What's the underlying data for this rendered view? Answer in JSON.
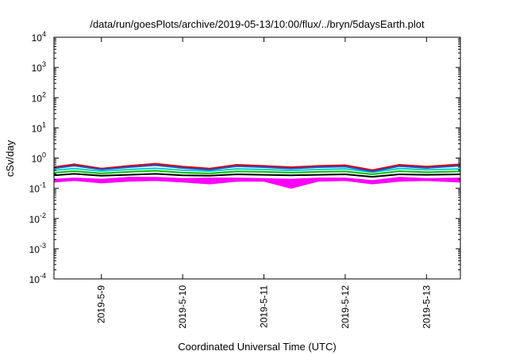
{
  "chart_data": {
    "type": "line",
    "title": "/data/run/goesPlots/archive/2019-05-13/10:00/flux/../bryn/5daysEarth.plot",
    "xlabel": "Coordinated Universal Time (UTC)",
    "ylabel": "cSv/day",
    "y_scale": "log",
    "ylim": [
      0.0001,
      10000
    ],
    "y_ticks": [
      {
        "mantissa": "10",
        "exponent": "-4",
        "value": 0.0001
      },
      {
        "mantissa": "10",
        "exponent": "-3",
        "value": 0.001
      },
      {
        "mantissa": "10",
        "exponent": "-2",
        "value": 0.01
      },
      {
        "mantissa": "10",
        "exponent": "-1",
        "value": 0.1
      },
      {
        "mantissa": "10",
        "exponent": "0",
        "value": 1
      },
      {
        "mantissa": "10",
        "exponent": "1",
        "value": 10
      },
      {
        "mantissa": "10",
        "exponent": "2",
        "value": 100
      },
      {
        "mantissa": "10",
        "exponent": "3",
        "value": 1000
      },
      {
        "mantissa": "10",
        "exponent": "4",
        "value": 10000
      }
    ],
    "xlim": [
      "2019-05-08 10:00",
      "2019-05-13 10:00"
    ],
    "x_ticks": [
      {
        "label": "2019-5-9",
        "date": "2019-05-09 00:00"
      },
      {
        "label": "2019-5-10",
        "date": "2019-05-10 00:00"
      },
      {
        "label": "2019-5-11",
        "date": "2019-05-11 00:00"
      },
      {
        "label": "2019-5-12",
        "date": "2019-05-12 00:00"
      },
      {
        "label": "2019-5-13",
        "date": "2019-05-13 00:00"
      }
    ],
    "grid": false,
    "legend": "none",
    "series": [
      {
        "color": "#ff00ff",
        "style": "filled band",
        "x": [
          "2019-05-08 10:00",
          "2019-05-08 16:00",
          "2019-05-09 00:00",
          "2019-05-09 08:00",
          "2019-05-09 16:00",
          "2019-05-10 00:00",
          "2019-05-10 08:00",
          "2019-05-10 16:00",
          "2019-05-11 00:00",
          "2019-05-11 08:00",
          "2019-05-11 16:00",
          "2019-05-12 00:00",
          "2019-05-12 08:00",
          "2019-05-12 16:00",
          "2019-05-13 00:00",
          "2019-05-13 10:00"
        ],
        "lower": [
          0.16,
          0.18,
          0.15,
          0.17,
          0.18,
          0.16,
          0.14,
          0.17,
          0.17,
          0.1,
          0.17,
          0.18,
          0.14,
          0.17,
          0.18,
          0.16
        ],
        "upper": [
          0.2,
          0.22,
          0.2,
          0.23,
          0.23,
          0.21,
          0.22,
          0.22,
          0.21,
          0.2,
          0.22,
          0.22,
          0.18,
          0.23,
          0.21,
          0.22
        ]
      },
      {
        "color": "#000000",
        "style": "line",
        "x": [
          "2019-05-08 10:00",
          "2019-05-08 16:00",
          "2019-05-09 00:00",
          "2019-05-09 08:00",
          "2019-05-09 16:00",
          "2019-05-10 00:00",
          "2019-05-10 08:00",
          "2019-05-10 16:00",
          "2019-05-11 00:00",
          "2019-05-11 08:00",
          "2019-05-11 16:00",
          "2019-05-12 00:00",
          "2019-05-12 08:00",
          "2019-05-12 16:00",
          "2019-05-13 00:00",
          "2019-05-13 10:00"
        ],
        "values": [
          0.27,
          0.3,
          0.26,
          0.28,
          0.3,
          0.27,
          0.26,
          0.29,
          0.28,
          0.27,
          0.28,
          0.29,
          0.24,
          0.29,
          0.28,
          0.29
        ]
      },
      {
        "color": "#00c000",
        "style": "line",
        "x": [
          "2019-05-08 10:00",
          "2019-05-08 16:00",
          "2019-05-09 00:00",
          "2019-05-09 08:00",
          "2019-05-09 16:00",
          "2019-05-10 00:00",
          "2019-05-10 08:00",
          "2019-05-10 16:00",
          "2019-05-11 00:00",
          "2019-05-11 08:00",
          "2019-05-11 16:00",
          "2019-05-12 00:00",
          "2019-05-12 08:00",
          "2019-05-12 16:00",
          "2019-05-13 00:00",
          "2019-05-13 10:00"
        ],
        "values": [
          0.33,
          0.37,
          0.31,
          0.35,
          0.38,
          0.33,
          0.31,
          0.36,
          0.35,
          0.33,
          0.35,
          0.36,
          0.29,
          0.37,
          0.34,
          0.36
        ]
      },
      {
        "color": "#00d0d0",
        "style": "line",
        "x": [
          "2019-05-08 10:00",
          "2019-05-08 16:00",
          "2019-05-09 00:00",
          "2019-05-09 08:00",
          "2019-05-09 16:00",
          "2019-05-10 00:00",
          "2019-05-10 08:00",
          "2019-05-10 16:00",
          "2019-05-11 00:00",
          "2019-05-11 08:00",
          "2019-05-11 16:00",
          "2019-05-12 00:00",
          "2019-05-12 08:00",
          "2019-05-12 16:00",
          "2019-05-13 00:00",
          "2019-05-13 10:00"
        ],
        "values": [
          0.4,
          0.45,
          0.37,
          0.42,
          0.46,
          0.4,
          0.37,
          0.44,
          0.42,
          0.39,
          0.42,
          0.44,
          0.34,
          0.45,
          0.41,
          0.44
        ]
      },
      {
        "color": "#e00000",
        "style": "line",
        "x": [
          "2019-05-08 10:00",
          "2019-05-08 16:00",
          "2019-05-09 00:00",
          "2019-05-09 08:00",
          "2019-05-09 16:00",
          "2019-05-10 00:00",
          "2019-05-10 08:00",
          "2019-05-10 16:00",
          "2019-05-11 00:00",
          "2019-05-11 08:00",
          "2019-05-11 16:00",
          "2019-05-12 00:00",
          "2019-05-12 08:00",
          "2019-05-12 16:00",
          "2019-05-13 00:00",
          "2019-05-13 10:00"
        ],
        "values": [
          0.5,
          0.62,
          0.45,
          0.55,
          0.65,
          0.52,
          0.45,
          0.6,
          0.55,
          0.5,
          0.55,
          0.58,
          0.4,
          0.6,
          0.52,
          0.62
        ]
      },
      {
        "color": "#2050d0",
        "style": "line",
        "x": [
          "2019-05-08 10:00",
          "2019-05-08 16:00",
          "2019-05-09 00:00",
          "2019-05-09 08:00",
          "2019-05-09 16:00",
          "2019-05-10 00:00",
          "2019-05-10 08:00",
          "2019-05-10 16:00",
          "2019-05-11 00:00",
          "2019-05-11 08:00",
          "2019-05-11 16:00",
          "2019-05-12 00:00",
          "2019-05-12 08:00",
          "2019-05-12 16:00",
          "2019-05-13 00:00",
          "2019-05-13 10:00"
        ],
        "values": [
          0.46,
          0.56,
          0.42,
          0.5,
          0.58,
          0.47,
          0.41,
          0.54,
          0.5,
          0.45,
          0.5,
          0.52,
          0.36,
          0.54,
          0.47,
          0.56
        ]
      }
    ]
  }
}
